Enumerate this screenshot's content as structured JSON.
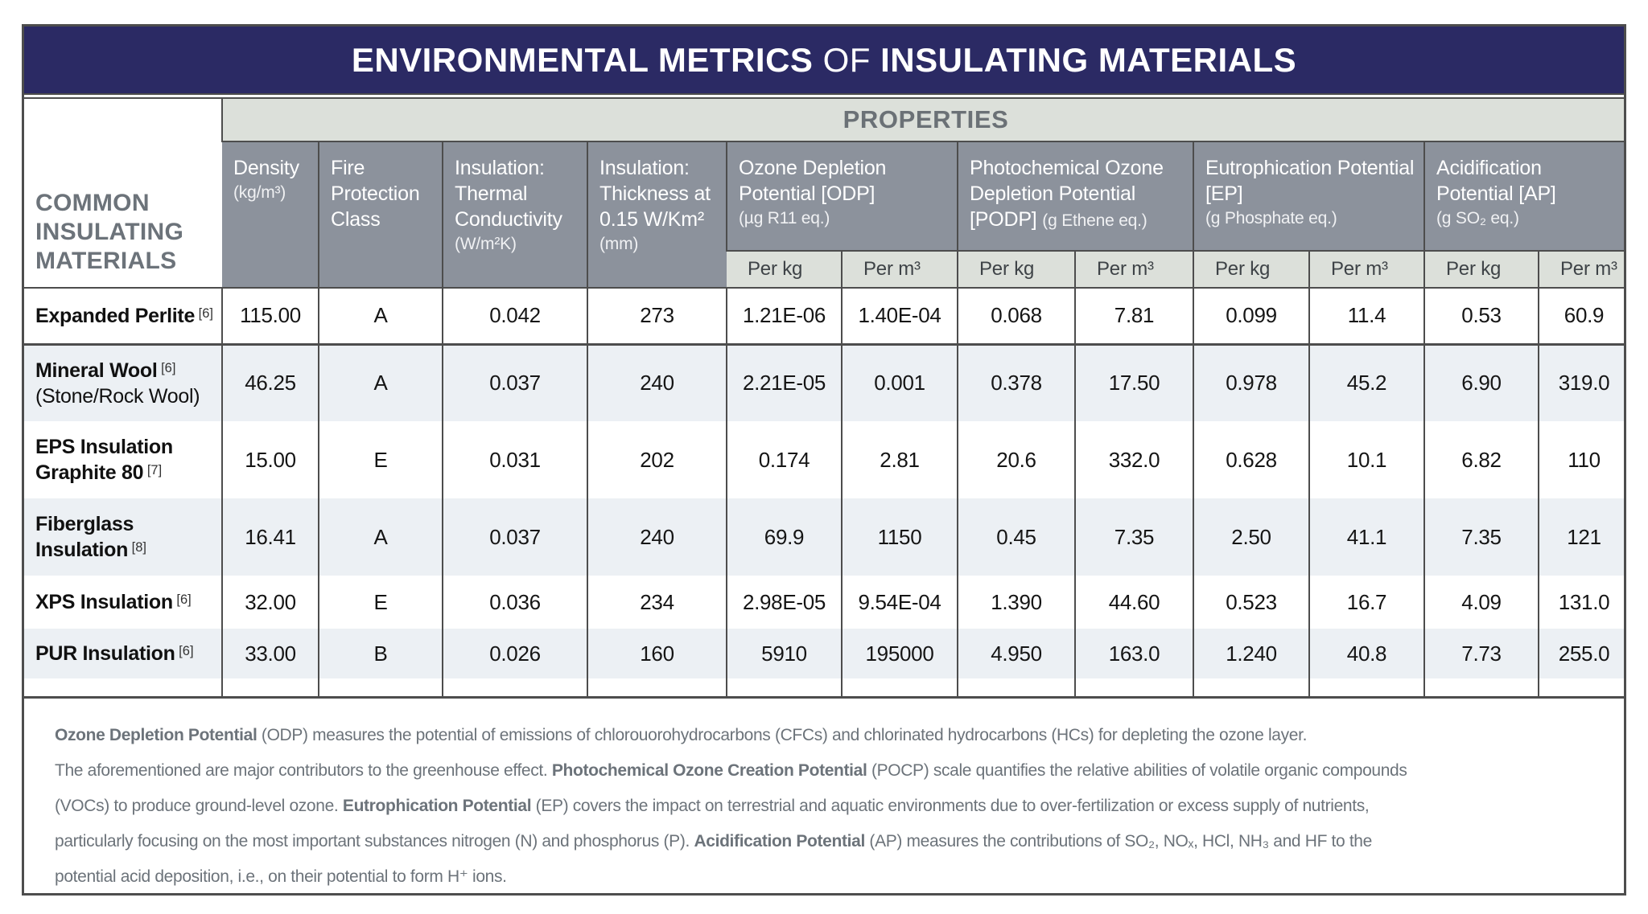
{
  "title_segments": [
    {
      "t": "ENVIRONMENTAL METRICS",
      "b": true
    },
    {
      "t": " OF "
    },
    {
      "t": "INSULATING MATERIALS",
      "b": true
    }
  ],
  "properties_label": "PROPERTIES",
  "row_header_lines": [
    "COMMON",
    "INSULATING",
    "MATERIALS"
  ],
  "columns": {
    "density": {
      "title": "Density",
      "unit": "(kg/m³)"
    },
    "fire": {
      "title": "Fire Protection Class",
      "unit": ""
    },
    "thermal": {
      "title": "Insulation: Thermal Conductivity",
      "unit": "(W/m²K)"
    },
    "thickness": {
      "title": "Insulation: Thickness at 0.15 W/Km²",
      "unit": "(mm)"
    },
    "odp": {
      "title": "Ozone Depletion Potential [ODP]",
      "unit": "(µg R11 eq.)"
    },
    "podp": {
      "title": "Photochemical Ozone Depletion Potential [PODP]",
      "unit": "(g Ethene eq.)"
    },
    "ep": {
      "title": "Eutrophication Potential [EP]",
      "unit": "(g Phosphate eq.)"
    },
    "ap": {
      "title": "Acidification Potential [AP]",
      "unit": "(g SO₂ eq.)"
    }
  },
  "subheaders": {
    "per_kg": "Per kg",
    "per_m3": "Per m³"
  },
  "rows": [
    {
      "name_lines": [
        [
          {
            "t": "Expanded Perlite",
            "b": true
          },
          {
            "t": " [6]",
            "ref": true
          }
        ]
      ],
      "values": [
        "115.00",
        "A",
        "0.042",
        "273",
        "1.21E-06",
        "1.40E-04",
        "0.068",
        "7.81",
        "0.099",
        "11.4",
        "0.53",
        "60.9"
      ]
    },
    {
      "name_lines": [
        [
          {
            "t": "Mineral Wool",
            "b": true
          },
          {
            "t": " [6]",
            "ref": true
          }
        ],
        [
          {
            "t": "(Stone/Rock Wool)"
          }
        ]
      ],
      "values": [
        "46.25",
        "A",
        "0.037",
        "240",
        "2.21E-05",
        "0.001",
        "0.378",
        "17.50",
        "0.978",
        "45.2",
        "6.90",
        "319.0"
      ]
    },
    {
      "name_lines": [
        [
          {
            "t": "EPS Insulation",
            "b": true
          }
        ],
        [
          {
            "t": "Graphite 80",
            "b": true
          },
          {
            "t": " [7]",
            "ref": true
          }
        ]
      ],
      "values": [
        "15.00",
        "E",
        "0.031",
        "202",
        "0.174",
        "2.81",
        "20.6",
        "332.0",
        "0.628",
        "10.1",
        "6.82",
        "110"
      ]
    },
    {
      "name_lines": [
        [
          {
            "t": "Fiberglass",
            "b": true
          }
        ],
        [
          {
            "t": "Insulation",
            "b": true
          },
          {
            "t": " [8]",
            "ref": true
          }
        ]
      ],
      "values": [
        "16.41",
        "A",
        "0.037",
        "240",
        "69.9",
        "1150",
        "0.45",
        "7.35",
        "2.50",
        "41.1",
        "7.35",
        "121"
      ]
    },
    {
      "name_lines": [
        [
          {
            "t": "XPS Insulation",
            "b": true
          },
          {
            "t": " [6]",
            "ref": true
          }
        ]
      ],
      "values": [
        "32.00",
        "E",
        "0.036",
        "234",
        "2.98E-05",
        "9.54E-04",
        "1.390",
        "44.60",
        "0.523",
        "16.7",
        "4.09",
        "131.0"
      ]
    },
    {
      "name_lines": [
        [
          {
            "t": "PUR Insulation",
            "b": true
          },
          {
            "t": " [6]",
            "ref": true
          }
        ]
      ],
      "values": [
        "33.00",
        "B",
        "0.026",
        "160",
        "5910",
        "195000",
        "4.950",
        "163.0",
        "1.240",
        "40.8",
        "7.73",
        "255.0"
      ]
    }
  ],
  "footnote_lines": [
    [
      {
        "t": "Ozone Depletion Potential",
        "b": true
      },
      {
        "t": " (ODP) measures the potential of emissions of chlorouorohydrocarbons (CFCs) and chlorinated hydrocarbons (HCs) for depleting the ozone layer."
      }
    ],
    [
      {
        "t": "The aforementioned are major contributors to the greenhouse effect. "
      },
      {
        "t": "Photochemical Ozone Creation Potential",
        "b": true
      },
      {
        "t": " (POCP) scale quantifies the relative abilities of volatile organic compounds"
      }
    ],
    [
      {
        "t": "(VOCs) to produce ground-level ozone. "
      },
      {
        "t": "Eutrophication Potential",
        "b": true
      },
      {
        "t": " (EP) covers the impact on terrestrial and aquatic environments due to over-fertilization or excess supply of nutrients,"
      }
    ],
    [
      {
        "t": "particularly focusing on the most important substances nitrogen (N) and phosphorus (P). "
      },
      {
        "t": "Acidification Potential",
        "b": true
      },
      {
        "t": " (AP) measures the contributions of SO₂, NOₓ, HCl, NH₃ and HF to the"
      }
    ],
    [
      {
        "t": "potential acid deposition, i.e., on their potential to form H⁺ ions."
      }
    ]
  ],
  "colors": {
    "title_bar_bg": "#2b2a64",
    "column_header_bg": "#8c929c",
    "band_bg": "#dce0da",
    "alt_row_bg": "#ecf0f4",
    "border": "#4d4d4d",
    "muted_text": "#6c737a"
  }
}
